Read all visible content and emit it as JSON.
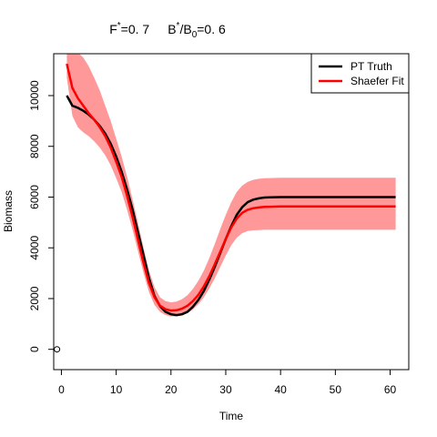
{
  "chart_data": {
    "type": "line",
    "title_parts": {
      "f_base": "F",
      "f_sup": "*",
      "f_value": "=0. 7",
      "b_base": "B",
      "b_sup": "*",
      "b_slash": "/B",
      "b_sub": "0",
      "b_value": "=0. 6"
    },
    "xlabel": "Time",
    "ylabel": "Biomass",
    "xlim": [
      -1.4,
      63.4
    ],
    "ylim": [
      -800,
      11650
    ],
    "xticks": [
      0,
      10,
      20,
      30,
      40,
      50,
      60
    ],
    "yticks": [
      0,
      2000,
      4000,
      6000,
      8000,
      10000
    ],
    "legend": {
      "position": "top-right",
      "entries": [
        {
          "label": "PT Truth",
          "color": "#000000"
        },
        {
          "label": "Shaefer Fit",
          "color": "#ff0000"
        }
      ]
    },
    "colors": {
      "band": "#ff9999",
      "truth": "#000000",
      "fit": "#ff0000"
    },
    "marker_point": {
      "x": -0.8,
      "y": 0
    },
    "series": [
      {
        "name": "PT Truth",
        "x": [
          1,
          2,
          3,
          4,
          5,
          6,
          7,
          8,
          9,
          10,
          11,
          12,
          13,
          14,
          15,
          16,
          17,
          18,
          19,
          20,
          21,
          22,
          23,
          24,
          25,
          26,
          27,
          28,
          29,
          30,
          31,
          32,
          33,
          34,
          35,
          36,
          37,
          38,
          40,
          45,
          50,
          55,
          61
        ],
        "y": [
          10000,
          9600,
          9520,
          9400,
          9250,
          9050,
          8800,
          8500,
          8100,
          7600,
          7000,
          6300,
          5500,
          4600,
          3700,
          2800,
          2100,
          1700,
          1480,
          1380,
          1350,
          1380,
          1480,
          1680,
          1950,
          2300,
          2750,
          3250,
          3800,
          4350,
          4850,
          5300,
          5600,
          5800,
          5900,
          5950,
          5980,
          5990,
          6000,
          6000,
          6000,
          6000,
          6000
        ]
      },
      {
        "name": "Shaefer Fit",
        "x": [
          1,
          2,
          3,
          4,
          5,
          6,
          7,
          8,
          9,
          10,
          11,
          12,
          13,
          14,
          15,
          16,
          17,
          18,
          19,
          20,
          21,
          22,
          23,
          24,
          25,
          26,
          27,
          28,
          29,
          30,
          31,
          32,
          33,
          34,
          35,
          36,
          37,
          38,
          40,
          45,
          50,
          55,
          61
        ],
        "y": [
          11250,
          10300,
          9900,
          9600,
          9300,
          9050,
          8750,
          8400,
          7950,
          7400,
          6800,
          6050,
          5200,
          4300,
          3400,
          2600,
          2050,
          1720,
          1580,
          1530,
          1540,
          1600,
          1720,
          1900,
          2150,
          2480,
          2880,
          3350,
          3850,
          4350,
          4800,
          5150,
          5380,
          5500,
          5560,
          5590,
          5610,
          5620,
          5630,
          5630,
          5630,
          5630,
          5630
        ]
      }
    ],
    "band": {
      "x": [
        1,
        2,
        3,
        4,
        5,
        6,
        7,
        8,
        9,
        10,
        11,
        12,
        13,
        14,
        15,
        16,
        17,
        18,
        19,
        20,
        21,
        22,
        23,
        24,
        25,
        26,
        27,
        28,
        29,
        30,
        31,
        32,
        33,
        34,
        35,
        36,
        37,
        38,
        40,
        45,
        50,
        55,
        61
      ],
      "upper": [
        11700,
        11700,
        11700,
        11500,
        11150,
        10700,
        10200,
        9600,
        9000,
        8300,
        7600,
        6800,
        5900,
        4950,
        4000,
        3100,
        2450,
        2050,
        1900,
        1850,
        1880,
        1970,
        2130,
        2380,
        2700,
        3100,
        3600,
        4150,
        4750,
        5300,
        5800,
        6200,
        6450,
        6600,
        6680,
        6720,
        6740,
        6750,
        6760,
        6760,
        6760,
        6760,
        6760
      ],
      "lower": [
        10700,
        9200,
        8750,
        8550,
        8400,
        8200,
        7950,
        7650,
        7250,
        6750,
        6200,
        5500,
        4700,
        3850,
        3000,
        2250,
        1750,
        1480,
        1350,
        1300,
        1300,
        1330,
        1420,
        1570,
        1780,
        2050,
        2400,
        2800,
        3250,
        3700,
        4100,
        4400,
        4580,
        4660,
        4690,
        4700,
        4710,
        4710,
        4710,
        4710,
        4710,
        4710,
        4710
      ]
    }
  }
}
